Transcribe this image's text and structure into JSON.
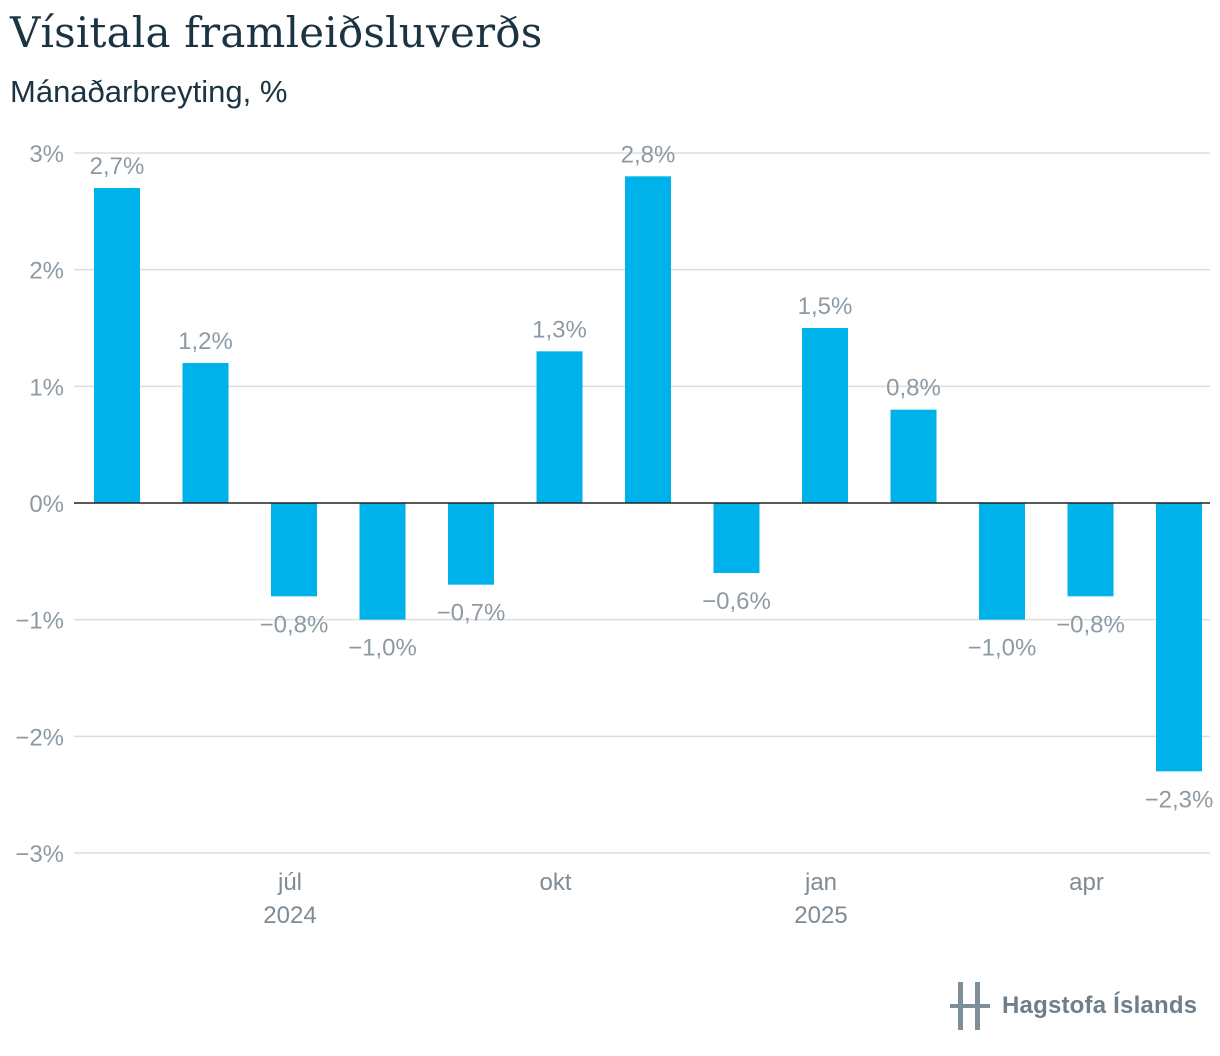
{
  "title": "Vísitala framleiðsluverðs",
  "subtitle": "Mánaðarbreyting, %",
  "brand": {
    "name": "Hagstofa Íslands",
    "logo_icon": "hagstofa-logo-icon"
  },
  "colors": {
    "bar": "#00b2ea",
    "grid": "#dddddd",
    "baseline": "#222222",
    "text": "#8d9aa4"
  },
  "chart_data": {
    "type": "bar",
    "categories": [
      "2024-05",
      "2024-06",
      "2024-07",
      "2024-08",
      "2024-09",
      "2024-10",
      "2024-11",
      "2024-12",
      "2025-01",
      "2025-02",
      "2025-03",
      "2025-04",
      "2025-05"
    ],
    "values": [
      2.7,
      1.2,
      -0.8,
      -1.0,
      -0.7,
      1.3,
      2.8,
      -0.6,
      1.5,
      0.8,
      -1.0,
      -0.8,
      -2.3
    ],
    "data_labels": [
      "2,7%",
      "1,2%",
      "−0,8%",
      "−1,0%",
      "−0,7%",
      "1,3%",
      "2,8%",
      "−0,6%",
      "1,5%",
      "0,8%",
      "−1,0%",
      "−0,8%",
      "−2,3%"
    ],
    "ylim": [
      -3,
      3
    ],
    "yticks": [
      3,
      2,
      1,
      0,
      -1,
      -2,
      -3
    ],
    "ytick_labels": [
      "3%",
      "2%",
      "1%",
      "0%",
      "−1%",
      "−2%",
      "−3%"
    ],
    "xticks": [
      {
        "index": 2,
        "label": "júl",
        "year": "2024"
      },
      {
        "index": 5,
        "label": "okt",
        "year": ""
      },
      {
        "index": 8,
        "label": "jan",
        "year": "2025"
      },
      {
        "index": 11,
        "label": "apr",
        "year": ""
      }
    ],
    "grid": true
  }
}
